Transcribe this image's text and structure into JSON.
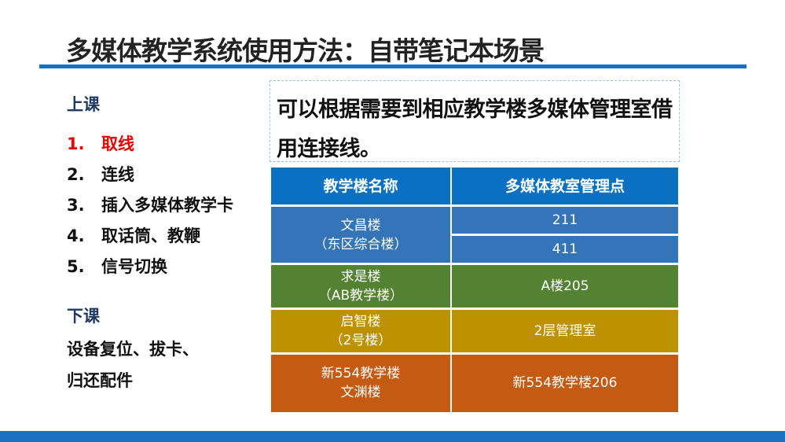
{
  "title": "多媒体教学系统使用方法：自带笔记本场景",
  "left": {
    "class_start": "上课",
    "steps": [
      {
        "num": "1.",
        "label": "取线",
        "active": true
      },
      {
        "num": "2.",
        "label": "连线"
      },
      {
        "num": "3.",
        "label": "插入多媒体教学卡"
      },
      {
        "num": "4.",
        "label": "取话筒、教鞭"
      },
      {
        "num": "5.",
        "label": "信号切换"
      }
    ],
    "class_end": "下课",
    "end_lines": [
      "设备复位、拔卡、",
      "归还配件"
    ]
  },
  "callout": "可以根据需要到相应教学楼多媒体管理室借用连接线。",
  "table": {
    "headers": [
      "教学楼名称",
      "多媒体教室管理点"
    ],
    "rows": [
      {
        "building": [
          "文昌楼",
          "（东区综合楼）"
        ],
        "points": [
          "211",
          "411"
        ],
        "color": "#3474b8"
      },
      {
        "building": [
          "求是楼",
          "（AB教学楼）"
        ],
        "points": [
          "A楼205"
        ],
        "color": "#528232"
      },
      {
        "building": [
          "启智楼",
          "（2号楼）"
        ],
        "points": [
          "2层管理室"
        ],
        "color": "#be9100"
      },
      {
        "building": [
          "新554教学楼",
          "文渊楼"
        ],
        "points": [
          "新554教学楼206"
        ],
        "color": "#c55a13"
      }
    ]
  },
  "colors": {
    "accent": "#1a6fc0",
    "active_step": "#e00000",
    "heading": "#1f3864"
  }
}
